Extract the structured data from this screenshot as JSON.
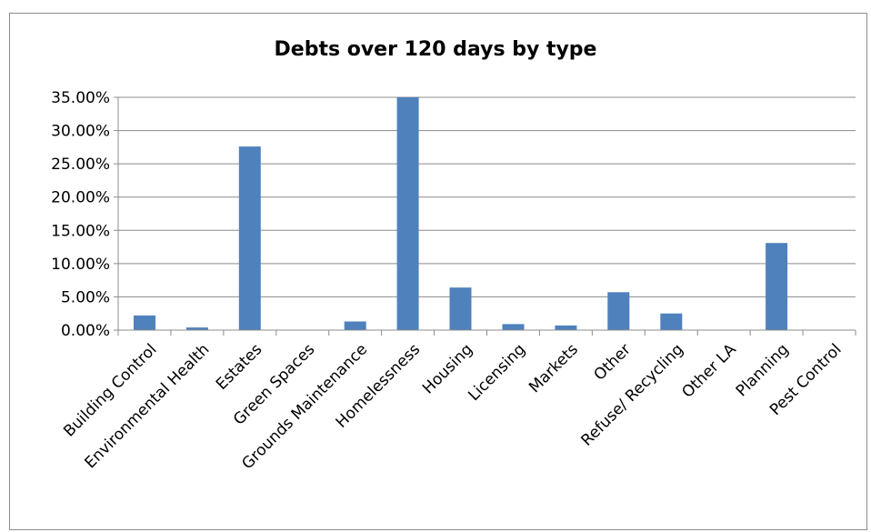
{
  "chart_data": {
    "type": "bar",
    "title": "Debts over 120 days by type",
    "xlabel": "",
    "ylabel": "",
    "ylim": [
      0,
      0.35
    ],
    "yticks": [
      0,
      0.05,
      0.1,
      0.15,
      0.2,
      0.25,
      0.3,
      0.35
    ],
    "ytick_labels": [
      "0.00%",
      "5.00%",
      "10.00%",
      "15.00%",
      "20.00%",
      "25.00%",
      "30.00%",
      "35.00%"
    ],
    "grid": true,
    "legend": "none",
    "bar_color": "#4f81bd",
    "categories": [
      "Building Control",
      "Environmental Health",
      "Estates",
      "Green Spaces",
      "Grounds Maintenance",
      "Homelessness",
      "Housing",
      "Licensing",
      "Markets",
      "Other",
      "Refuse/ Recycling",
      "Other LA",
      "Planning",
      "Pest Control"
    ],
    "values": [
      0.022,
      0.004,
      0.276,
      0.0,
      0.013,
      0.35,
      0.064,
      0.009,
      0.007,
      0.057,
      0.025,
      0.0,
      0.131,
      0.0
    ]
  }
}
